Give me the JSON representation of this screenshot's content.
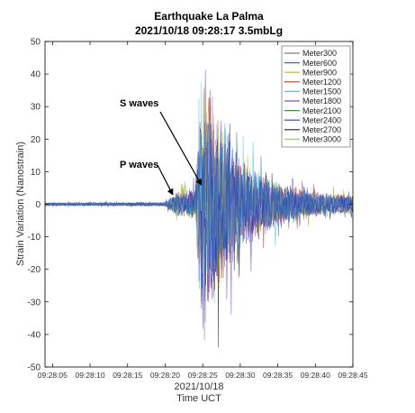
{
  "chart_data": {
    "type": "line",
    "title": "Earthquake La Palma",
    "subtitle": "2021/10/18 09:28:17 3.5mbLg",
    "xlabel": "Time UCT",
    "xlabel_date": "2021/10/18",
    "ylabel": "Strain Variation (Nanostrain)",
    "xlim": [
      "09:28:04",
      "09:28:45"
    ],
    "ylim": [
      -50,
      50
    ],
    "x_ticks": [
      "09:28:05",
      "09:28:10",
      "09:28:15",
      "09:28:20",
      "09:28:25",
      "09:28:30",
      "09:28:35",
      "09:28:40",
      "09:28:45"
    ],
    "y_ticks": [
      -50,
      -40,
      -30,
      -20,
      -10,
      0,
      10,
      20,
      30,
      40,
      50
    ],
    "grid": false,
    "legend_position": "top-right",
    "series": [
      {
        "name": "Meter300",
        "color": "#7f7f7f"
      },
      {
        "name": "Meter600",
        "color": "#3b6fb6"
      },
      {
        "name": "Meter900",
        "color": "#c8b400"
      },
      {
        "name": "Meter1200",
        "color": "#d1322e"
      },
      {
        "name": "Meter1500",
        "color": "#4fc3f7"
      },
      {
        "name": "Meter1800",
        "color": "#7b4fd6"
      },
      {
        "name": "Meter2100",
        "color": "#2e9e3e"
      },
      {
        "name": "Meter2400",
        "color": "#1f3fbf"
      },
      {
        "name": "Meter2700",
        "color": "#222222"
      },
      {
        "name": "Meter3000",
        "color": "#8fd16a"
      }
    ],
    "envelope": {
      "description_times": [
        "09:28:04",
        "09:28:20",
        "09:28:21.5",
        "09:28:24",
        "09:28:25",
        "09:28:27",
        "09:28:30",
        "09:28:35",
        "09:28:40",
        "09:28:45"
      ],
      "amplitudes": [
        0.5,
        0.6,
        4,
        5,
        45,
        30,
        14,
        7,
        4,
        3
      ]
    },
    "annotations": [
      {
        "text": "S waves",
        "time": "09:28:24.8",
        "value": 6
      },
      {
        "text": "P waves",
        "time": "09:28:21",
        "value": 3
      }
    ]
  }
}
